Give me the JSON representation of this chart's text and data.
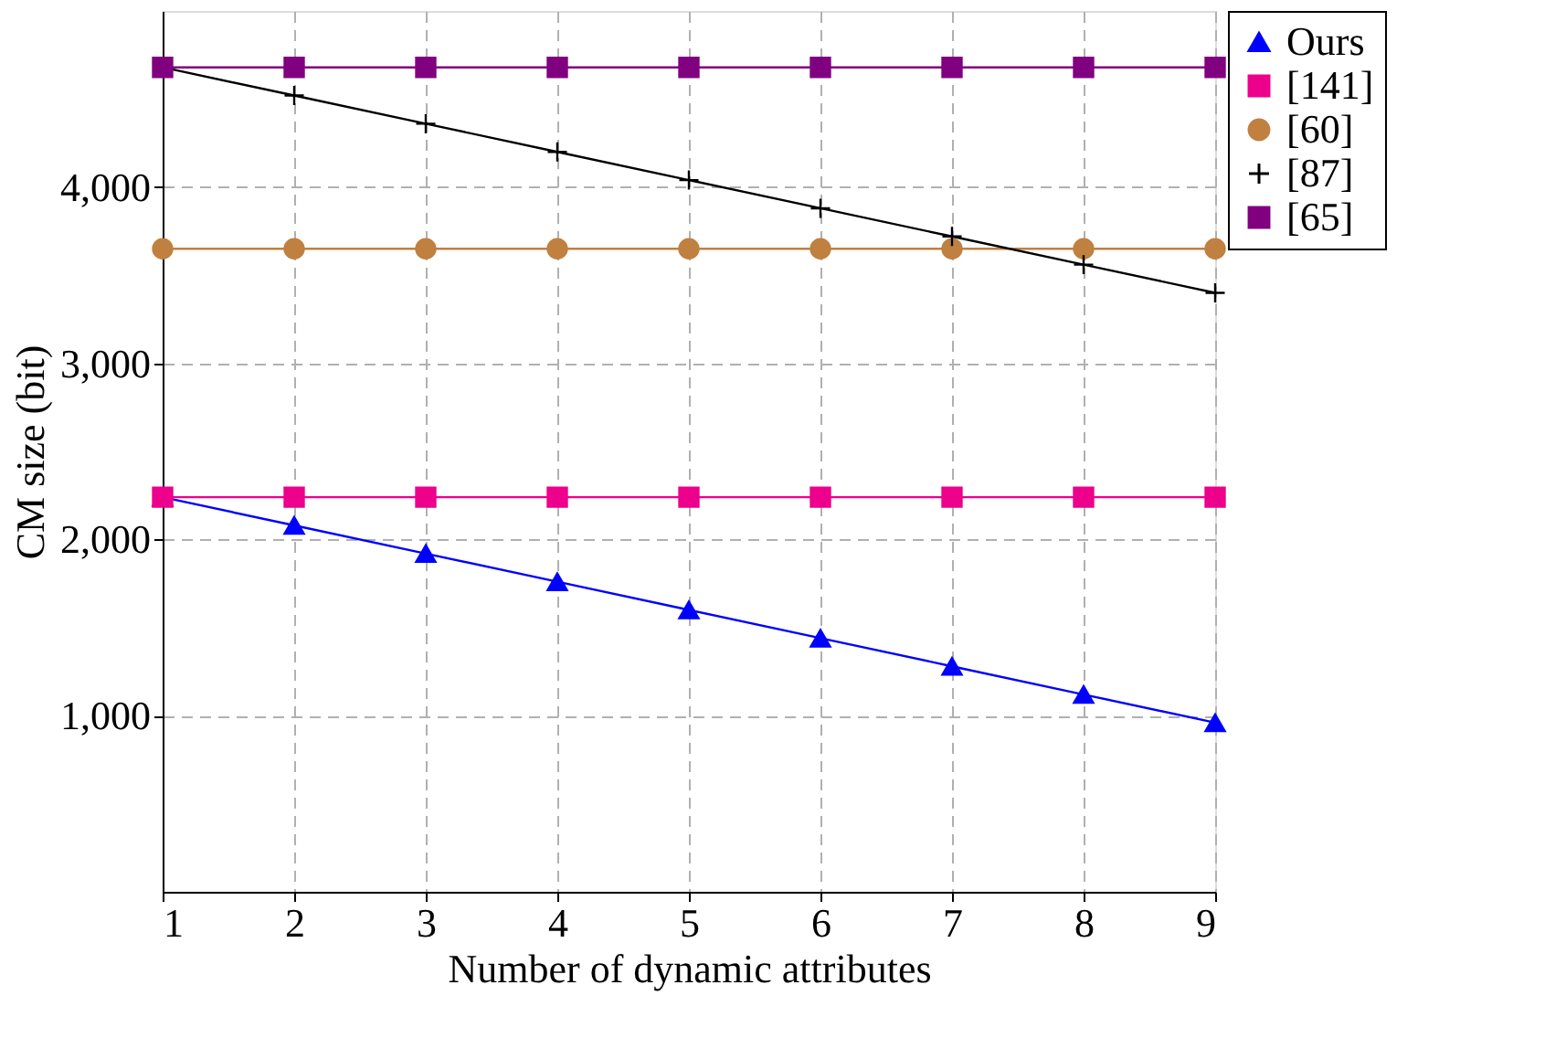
{
  "chart_data": {
    "type": "line",
    "xlabel": "Number of dynamic attributes",
    "ylabel": "CM size (bit)",
    "x": [
      1,
      2,
      3,
      4,
      5,
      6,
      7,
      8,
      9
    ],
    "xlim": [
      1,
      9
    ],
    "xticks": [
      1,
      2,
      3,
      4,
      5,
      6,
      7,
      8,
      9
    ],
    "ylim": [
      0,
      5000
    ],
    "yticks": [
      {
        "value": 1000,
        "label": "1,000"
      },
      {
        "value": 2000,
        "label": "2,000"
      },
      {
        "value": 3000,
        "label": "3,000"
      },
      {
        "value": 4000,
        "label": "4,000"
      }
    ],
    "grid": true,
    "legend": "right",
    "series": [
      {
        "name": "Ours",
        "color": "#0000ff",
        "marker": "triangle",
        "values": [
          2240,
          2080,
          1920,
          1760,
          1600,
          1440,
          1280,
          1120,
          960
        ]
      },
      {
        "name": "[141]",
        "color": "#ec008c",
        "marker": "square",
        "values": [
          2240,
          2240,
          2240,
          2240,
          2240,
          2240,
          2240,
          2240,
          2240
        ]
      },
      {
        "name": "[60]",
        "color": "#c08040",
        "marker": "circle",
        "values": [
          3650,
          3650,
          3650,
          3650,
          3650,
          3650,
          3650,
          3650,
          3650
        ]
      },
      {
        "name": "[87]",
        "color": "#000000",
        "marker": "cross",
        "values": [
          4680,
          4520,
          4360,
          4200,
          4040,
          3880,
          3720,
          3560,
          3400
        ]
      },
      {
        "name": "[65]",
        "color": "#800080",
        "marker": "square",
        "values": [
          4680,
          4680,
          4680,
          4680,
          4680,
          4680,
          4680,
          4680,
          4680
        ]
      }
    ]
  }
}
